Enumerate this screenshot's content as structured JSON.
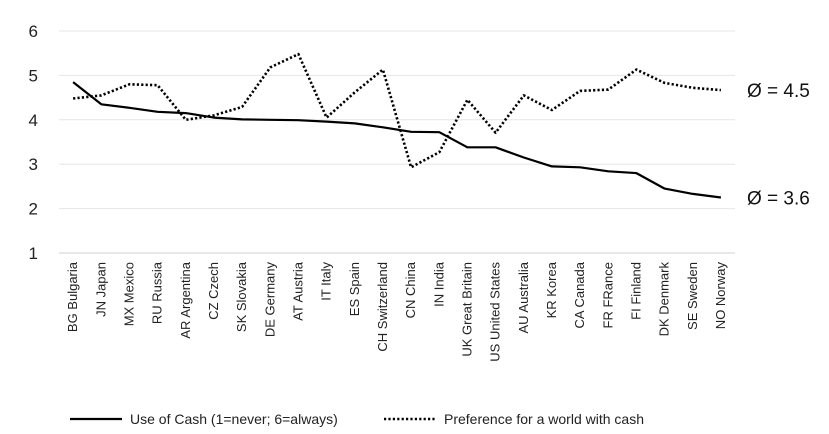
{
  "chart_data": {
    "type": "line",
    "title": "",
    "xlabel": "",
    "ylabel": "",
    "ylim": [
      1,
      6
    ],
    "yticks": [
      1,
      2,
      3,
      4,
      5,
      6
    ],
    "grid": true,
    "legend_position": "bottom",
    "categories": [
      "BG Bulgaria",
      "JN Japan",
      "MX Mexico",
      "RU Russia",
      "AR Argentina",
      "CZ Czech",
      "SK Slovakia",
      "DE Germany",
      "AT Austria",
      "IT Italy",
      "ES Spain",
      "CH Switzerland",
      "CN China",
      "IN India",
      "UK Great Britain",
      "US United States",
      "AU Australia",
      "KR Korea",
      "CA Canada",
      "FR FRance",
      "FI Finland",
      "DK Denmark",
      "SE Sweden",
      "NO Norway"
    ],
    "series": [
      {
        "name": "Use of Cash (1=never; 6=always)",
        "style": "solid",
        "color": "#000000",
        "values": [
          4.85,
          4.35,
          4.27,
          4.18,
          4.15,
          4.05,
          4.01,
          4.0,
          3.99,
          3.96,
          3.92,
          3.83,
          3.73,
          3.72,
          3.38,
          3.38,
          3.15,
          2.95,
          2.93,
          2.84,
          2.8,
          2.45,
          2.33,
          2.25
        ],
        "average_label": "Ø = 3.6"
      },
      {
        "name": "Preference for a world with cash",
        "style": "dotted",
        "color": "#000000",
        "values": [
          4.48,
          4.55,
          4.8,
          4.78,
          4.0,
          4.1,
          4.29,
          5.18,
          5.48,
          4.05,
          4.62,
          5.13,
          2.93,
          3.27,
          4.45,
          3.71,
          4.55,
          4.22,
          4.65,
          4.68,
          5.13,
          4.83,
          4.72,
          4.67
        ],
        "average_label": "Ø = 4.5"
      }
    ]
  }
}
